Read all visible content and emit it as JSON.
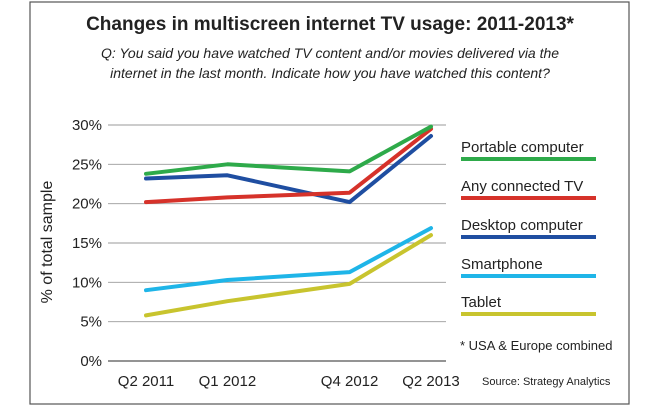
{
  "chart_data": {
    "type": "line",
    "title": "Changes in multiscreen internet TV usage: 2011-2013*",
    "question": "Q: You said you have watched TV content and/or movies delivered via the internet in the last month. Indicate how you have watched this content?",
    "question_lines": [
      "Q: You said you have watched TV content and/or movies delivered via the",
      "internet in the last month. Indicate how you have watched this content?"
    ],
    "ylabel": "% of total sample",
    "xlabel": "",
    "x": [
      0,
      1,
      2.5,
      3.5
    ],
    "categories": [
      "Q2 2011",
      "Q1 2012",
      "Q4 2012",
      "Q2 2013"
    ],
    "ylim": [
      0,
      30
    ],
    "yticks": [
      0,
      5,
      10,
      15,
      20,
      25,
      30
    ],
    "ytick_labels": [
      "0%",
      "5%",
      "10%",
      "15%",
      "20%",
      "25%",
      "30%"
    ],
    "grid": true,
    "legend_position": "right",
    "series": [
      {
        "name": "Portable computer",
        "color": "#2eaa4a",
        "values": [
          23.8,
          25.0,
          24.1,
          29.8
        ]
      },
      {
        "name": "Any connected TV",
        "color": "#d6322a",
        "values": [
          20.2,
          20.8,
          21.4,
          29.5
        ]
      },
      {
        "name": "Desktop computer",
        "color": "#1f4ea1",
        "values": [
          23.2,
          23.6,
          20.2,
          28.6
        ]
      },
      {
        "name": "Smartphone",
        "color": "#1fb5e8",
        "values": [
          9.0,
          10.3,
          11.3,
          16.9
        ]
      },
      {
        "name": "Tablet",
        "color": "#c8c42e",
        "values": [
          5.8,
          7.6,
          9.8,
          16.0
        ]
      }
    ],
    "footnote": "* USA & Europe combined",
    "source": "Source: Strategy Analytics"
  }
}
